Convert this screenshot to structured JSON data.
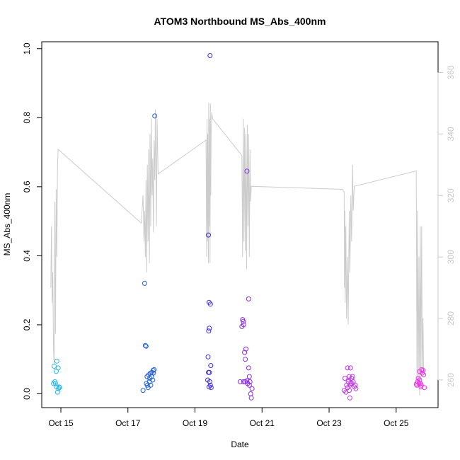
{
  "chart_data": {
    "type": "scatter",
    "title": "ATOM3 Northbound MS_Abs_400nm",
    "xlabel": "Date",
    "ylabel": "MS_Abs_400nm",
    "x_ticks": [
      "Oct 15",
      "Oct 17",
      "Oct 19",
      "Oct 21",
      "Oct 23",
      "Oct 25"
    ],
    "x_tick_days": [
      15,
      17,
      19,
      21,
      23,
      25
    ],
    "xlim_days": [
      14.43,
      26.25
    ],
    "ylim": [
      -0.04,
      1.02
    ],
    "y_ticks": [
      0.0,
      0.2,
      0.4,
      0.6,
      0.8,
      1.0
    ],
    "y2lim": [
      251,
      370
    ],
    "y2_ticks": [
      260,
      280,
      300,
      320,
      340,
      360
    ],
    "grid": false,
    "legend": "none",
    "point_colors": [
      "#29b6e6",
      "#1f5fd6",
      "#3a2be0",
      "#8a2be2",
      "#c03ae6",
      "#ee2ee8"
    ],
    "line_color": "#cccccc",
    "series": [
      {
        "kind": "points",
        "values": [
          [
            14.78,
            0.03
          ],
          [
            14.8,
            0.08
          ],
          [
            14.82,
            0.035
          ],
          [
            14.84,
            0.03
          ],
          [
            14.86,
            0.065
          ],
          [
            14.87,
            0.02
          ],
          [
            14.88,
            0.095
          ],
          [
            14.9,
            0.005
          ],
          [
            14.92,
            0.075
          ],
          [
            14.93,
            0.015
          ],
          [
            14.95,
            0.02
          ],
          [
            14.96,
            0.018
          ],
          [
            17.5,
            0.32
          ],
          [
            17.52,
            0.14
          ],
          [
            17.54,
            0.138
          ],
          [
            17.45,
            0.01
          ],
          [
            17.55,
            0.03
          ],
          [
            17.57,
            0.05
          ],
          [
            17.58,
            0.025
          ],
          [
            17.6,
            0.018
          ],
          [
            17.62,
            0.055
          ],
          [
            17.64,
            0.035
          ],
          [
            17.65,
            0.045
          ],
          [
            17.67,
            0.06
          ],
          [
            17.68,
            0.025
          ],
          [
            17.7,
            0.05
          ],
          [
            17.72,
            0.062
          ],
          [
            17.74,
            0.04
          ],
          [
            17.75,
            0.068
          ],
          [
            17.76,
            0.06
          ],
          [
            17.78,
            0.07
          ],
          [
            17.8,
            0.805
          ],
          [
            19.4,
            0.46
          ],
          [
            19.42,
            0.265
          ],
          [
            19.45,
            0.98
          ],
          [
            19.46,
            0.26
          ],
          [
            19.43,
            0.19
          ],
          [
            19.41,
            0.182
          ],
          [
            19.39,
            0.107
          ],
          [
            19.47,
            0.082
          ],
          [
            19.38,
            0.04
          ],
          [
            19.4,
            0.062
          ],
          [
            19.43,
            0.062
          ],
          [
            19.44,
            0.035
          ],
          [
            19.46,
            0.025
          ],
          [
            19.48,
            0.018
          ],
          [
            19.42,
            0.02
          ],
          [
            20.35,
            0.035
          ],
          [
            20.4,
            0.195
          ],
          [
            20.42,
            0.215
          ],
          [
            20.44,
            0.21
          ],
          [
            20.45,
            0.2
          ],
          [
            20.5,
            0.035
          ],
          [
            20.55,
            0.645
          ],
          [
            20.6,
            0.275
          ],
          [
            20.52,
            0.13
          ],
          [
            20.5,
            0.1
          ],
          [
            20.48,
            0.12
          ],
          [
            20.57,
            0.03
          ],
          [
            20.6,
            0.075
          ],
          [
            20.62,
            0.05
          ],
          [
            20.64,
            0.035
          ],
          [
            20.66,
            0.0
          ],
          [
            20.68,
            -0.012
          ],
          [
            20.7,
            0.015
          ],
          [
            20.62,
            0.025
          ],
          [
            20.45,
            0.035
          ],
          [
            20.55,
            0.038
          ],
          [
            23.45,
            0.01
          ],
          [
            23.47,
            0.045
          ],
          [
            23.5,
            0.005
          ],
          [
            23.52,
            0.025
          ],
          [
            23.55,
            0.075
          ],
          [
            23.57,
            0.035
          ],
          [
            23.6,
            0.05
          ],
          [
            23.62,
            0.025
          ],
          [
            23.64,
            0.075
          ],
          [
            23.6,
            0.01
          ],
          [
            23.65,
            0.03
          ],
          [
            23.67,
            0.045
          ],
          [
            23.7,
            0.05
          ],
          [
            23.72,
            0.035
          ],
          [
            23.75,
            0.02
          ],
          [
            23.78,
            0.025
          ],
          [
            23.8,
            0.015
          ],
          [
            23.62,
            -0.012
          ],
          [
            23.68,
            0.03
          ],
          [
            23.55,
            0.018
          ],
          [
            23.58,
            0.04
          ],
          [
            25.6,
            0.028
          ],
          [
            25.62,
            0.025
          ],
          [
            25.64,
            0.035
          ],
          [
            25.66,
            0.045
          ],
          [
            25.68,
            0.03
          ],
          [
            25.7,
            0.065
          ],
          [
            25.72,
            0.03
          ],
          [
            25.74,
            0.02
          ],
          [
            25.76,
            0.07
          ],
          [
            25.78,
            0.06
          ],
          [
            25.8,
            0.068
          ],
          [
            25.82,
            0.055
          ],
          [
            25.84,
            0.018
          ],
          [
            25.7,
            0.04
          ],
          [
            25.75,
            0.025
          ]
        ]
      },
      {
        "kind": "line",
        "axis": "right",
        "values": [
          [
            14.7,
            290
          ],
          [
            14.72,
            310
          ],
          [
            14.74,
            285
          ],
          [
            14.76,
            295
          ],
          [
            14.78,
            270
          ],
          [
            14.8,
            265
          ],
          [
            14.82,
            318
          ],
          [
            14.84,
            275
          ],
          [
            14.86,
            322
          ],
          [
            14.88,
            300
          ],
          [
            14.9,
            330
          ],
          [
            14.92,
            335
          ],
          [
            17.4,
            311
          ],
          [
            17.45,
            320
          ],
          [
            17.48,
            305
          ],
          [
            17.5,
            315
          ],
          [
            17.52,
            300
          ],
          [
            17.54,
            325
          ],
          [
            17.56,
            295
          ],
          [
            17.58,
            330
          ],
          [
            17.6,
            305
          ],
          [
            17.62,
            335
          ],
          [
            17.64,
            298
          ],
          [
            17.66,
            340
          ],
          [
            17.68,
            310
          ],
          [
            17.7,
            345
          ],
          [
            17.72,
            320
          ],
          [
            17.74,
            332
          ],
          [
            17.76,
            308
          ],
          [
            17.78,
            338
          ],
          [
            17.8,
            325
          ],
          [
            17.82,
            348
          ],
          [
            17.85,
            310
          ],
          [
            17.87,
            345
          ],
          [
            17.9,
            327
          ],
          [
            19.33,
            338
          ],
          [
            19.35,
            300
          ],
          [
            19.36,
            345
          ],
          [
            19.37,
            305
          ],
          [
            19.38,
            340
          ],
          [
            19.4,
            298
          ],
          [
            19.41,
            350
          ],
          [
            19.43,
            310
          ],
          [
            19.44,
            345
          ],
          [
            19.45,
            298
          ],
          [
            19.46,
            350
          ],
          [
            19.47,
            320
          ],
          [
            19.48,
            340
          ],
          [
            19.5,
            347
          ],
          [
            19.52,
            345
          ],
          [
            20.4,
            333
          ],
          [
            20.42,
            300
          ],
          [
            20.44,
            345
          ],
          [
            20.46,
            305
          ],
          [
            20.48,
            342
          ],
          [
            20.5,
            302
          ],
          [
            20.52,
            340
          ],
          [
            20.54,
            296
          ],
          [
            20.56,
            343
          ],
          [
            20.58,
            310
          ],
          [
            20.6,
            340
          ],
          [
            20.62,
            300
          ],
          [
            20.64,
            335
          ],
          [
            20.66,
            318
          ],
          [
            20.68,
            323
          ],
          [
            23.4,
            322
          ],
          [
            23.45,
            321
          ],
          [
            23.46,
            290
          ],
          [
            23.47,
            315
          ],
          [
            23.48,
            285
          ],
          [
            23.5,
            310
          ],
          [
            23.52,
            280
          ],
          [
            23.55,
            300
          ],
          [
            23.57,
            278
          ],
          [
            23.6,
            315
          ],
          [
            23.62,
            295
          ],
          [
            23.65,
            320
          ],
          [
            23.67,
            305
          ],
          [
            23.7,
            330
          ],
          [
            23.72,
            315
          ],
          [
            23.75,
            323
          ],
          [
            25.6,
            328
          ],
          [
            25.62,
            260
          ],
          [
            25.64,
            315
          ],
          [
            25.66,
            258
          ],
          [
            25.68,
            300
          ],
          [
            25.7,
            255
          ],
          [
            25.72,
            310
          ],
          [
            25.74,
            260
          ],
          [
            25.76,
            310
          ],
          [
            25.78,
            262
          ],
          [
            25.8,
            280
          ],
          [
            25.82,
            262
          ]
        ]
      }
    ]
  }
}
